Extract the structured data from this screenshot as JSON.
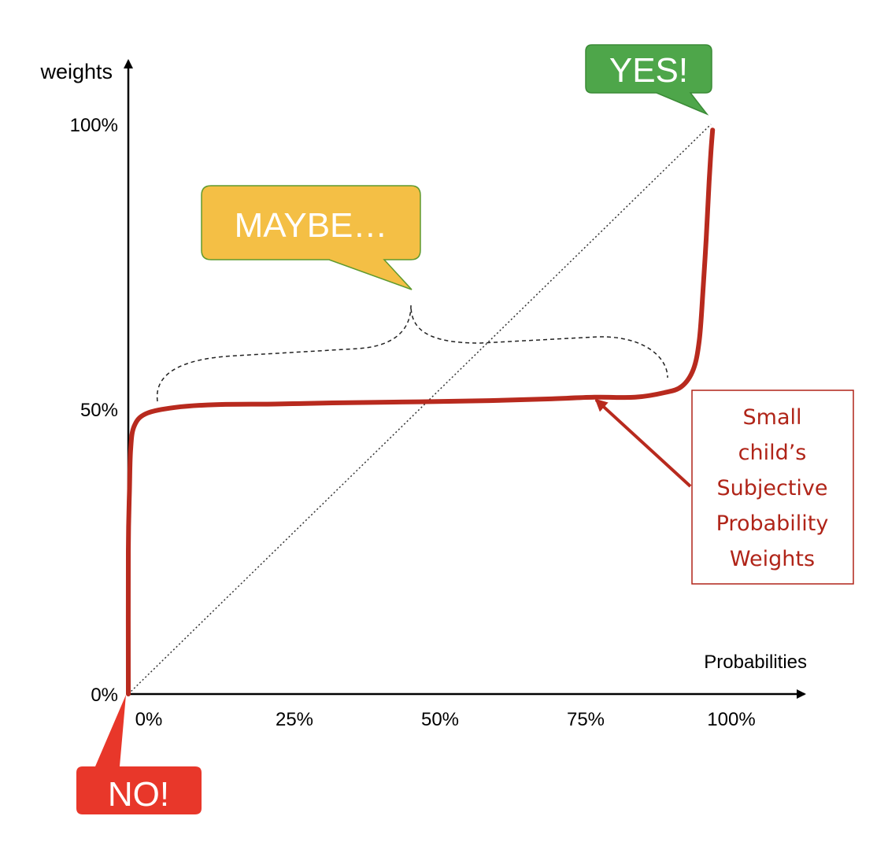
{
  "chart_data": {
    "type": "line",
    "title": "",
    "xlabel": "Probabilities",
    "ylabel": "weights",
    "xlim": [
      0,
      100
    ],
    "ylim": [
      0,
      100
    ],
    "x_ticks": [
      "0%",
      "25%",
      "50%",
      "75%",
      "100%"
    ],
    "x_tick_values": [
      0,
      25,
      50,
      75,
      100
    ],
    "y_ticks": [
      "0%",
      "50%",
      "100%"
    ],
    "y_tick_values": [
      0,
      50,
      100
    ],
    "reference_line": {
      "style": "dotted",
      "color": "#333333",
      "points": [
        [
          0,
          0
        ],
        [
          100,
          100
        ]
      ]
    },
    "series": [
      {
        "color": "#b82a1e",
        "points": [
          [
            0,
            0
          ],
          [
            0,
            25
          ],
          [
            0.2,
            36
          ],
          [
            0.4,
            43
          ],
          [
            1,
            47
          ],
          [
            3,
            49.2
          ],
          [
            8,
            50.3
          ],
          [
            15,
            50.8
          ],
          [
            25,
            50.9
          ],
          [
            35,
            51.1
          ],
          [
            50,
            51.3
          ],
          [
            62,
            51.5
          ],
          [
            72,
            51.8
          ],
          [
            80,
            52.1
          ],
          [
            87,
            52.1
          ],
          [
            92,
            52.9
          ],
          [
            95,
            54
          ],
          [
            97,
            57
          ],
          [
            98,
            62
          ],
          [
            98.6,
            70
          ],
          [
            99.2,
            80
          ],
          [
            99.7,
            90
          ],
          [
            100,
            95
          ],
          [
            100.3,
            99
          ]
        ]
      }
    ],
    "annotations": {
      "yes": {
        "text": "YES!",
        "color": "#4ea64a"
      },
      "maybe": {
        "text": "MAYBE…",
        "color": "#f4bf45"
      },
      "no": {
        "text": "NO!",
        "color": "#e8372a"
      },
      "note": {
        "lines": [
          "Small",
          "child’s",
          "Subjective",
          "Probability",
          "Weights"
        ],
        "color": "#b02418"
      }
    }
  }
}
